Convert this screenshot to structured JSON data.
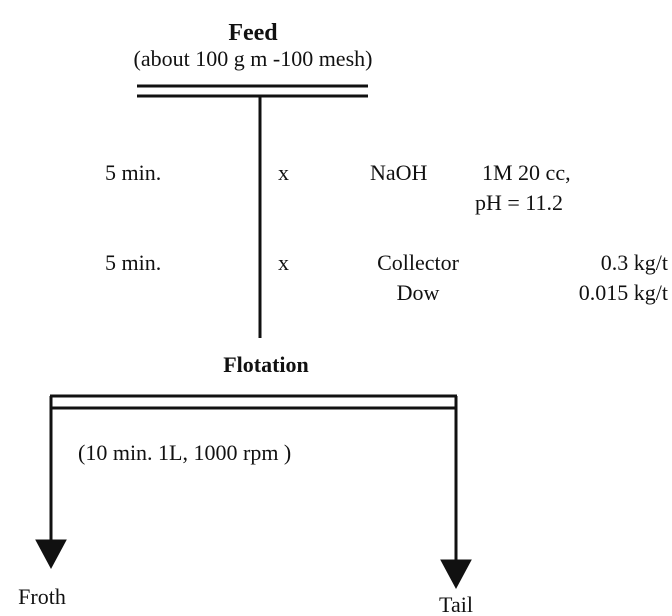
{
  "feed": {
    "title": "Feed",
    "subtitle": "(about 100 g m -100 mesh)"
  },
  "steps": [
    {
      "time": "5 min.",
      "mark": "x",
      "reagent": "NaOH",
      "dose": "1M 20 cc,",
      "note": "pH = 11.2"
    },
    {
      "time": "5 min.",
      "mark": "x",
      "reagents": [
        "Collector",
        "Dow"
      ],
      "doses": [
        "0.3 kg/t",
        "0.015 kg/t"
      ]
    }
  ],
  "flotation": {
    "title": "Flotation",
    "conditions": "(10 min. 1L, 1000 rpm )"
  },
  "outputs": [
    "Froth",
    "Tail"
  ]
}
